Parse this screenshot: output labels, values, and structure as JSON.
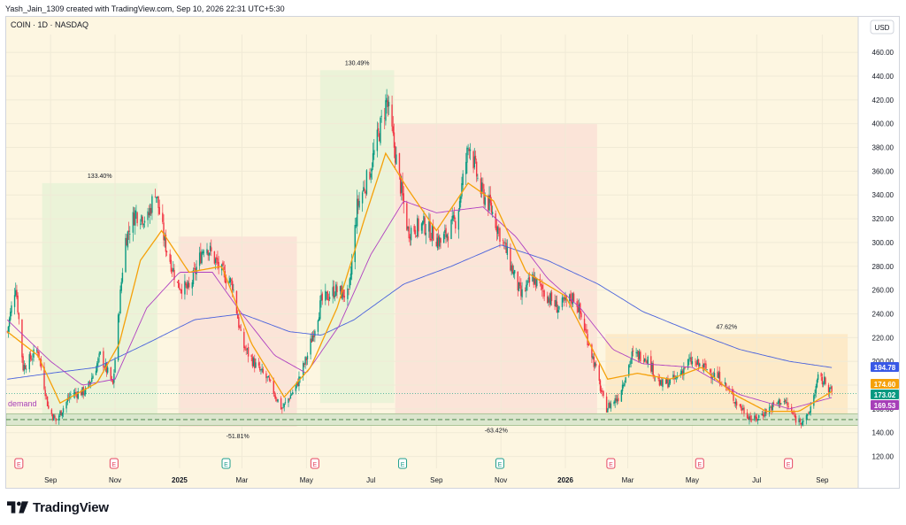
{
  "header": {
    "caption": "Yash_Jain_1309 created with TradingView.com, Sep 10, 2026 22:31 UTC+5:30"
  },
  "footer": {
    "brand": "TradingView",
    "logo_icon": "tradingview-logo-icon"
  },
  "colors": {
    "background": "#fdf6e1",
    "up": "#089981",
    "down": "#f23645",
    "grid": "#f0ead6",
    "ema_fast": "#f5a10a",
    "ema_mid": "#b040c0",
    "ema_slow": "#4a63dc",
    "rise_zone": "#e8f2d6",
    "fall_zone": "#fae0d6",
    "range_zone": "#fde7c3",
    "demand_zone": "#d8e6cc",
    "price_label_blue": "#3959e6",
    "price_label_orange": "#f5a10a",
    "price_label_green": "#089981",
    "price_label_purple": "#a63fb8",
    "earnings_marker": "#e5455f",
    "earnings_marker_teal": "#1f9e8c",
    "demand_text": "#a63fb8"
  },
  "chart_data": {
    "type": "candlestick",
    "symbol_line": "COIN · 1D · NASDAQ",
    "currency": "USD",
    "ylim": [
      110,
      475
    ],
    "y_ticks": [
      120,
      140,
      160,
      180,
      200,
      220,
      240,
      260,
      280,
      300,
      320,
      340,
      360,
      380,
      400,
      420,
      440,
      460
    ],
    "y_tick_labels": [
      "120.00",
      "140.00",
      "160.00",
      "180.00",
      "200.00",
      "220.00",
      "240.00",
      "260.00",
      "280.00",
      "300.00",
      "320.00",
      "340.00",
      "360.00",
      "380.00",
      "400.00",
      "420.00",
      "440.00",
      "460.00"
    ],
    "x_domain": [
      "2024-07-21",
      "2026-10-05"
    ],
    "x_ticks": [
      {
        "date": "2024-09-01",
        "label": "Sep"
      },
      {
        "date": "2024-11-01",
        "label": "Nov"
      },
      {
        "date": "2025-01-01",
        "label": "2025"
      },
      {
        "date": "2025-03-01",
        "label": "Mar"
      },
      {
        "date": "2025-05-01",
        "label": "May"
      },
      {
        "date": "2025-07-01",
        "label": "Jul"
      },
      {
        "date": "2025-09-01",
        "label": "Sep"
      },
      {
        "date": "2025-11-01",
        "label": "Nov"
      },
      {
        "date": "2026-01-01",
        "label": "2026"
      },
      {
        "date": "2026-03-01",
        "label": "Mar"
      },
      {
        "date": "2026-05-01",
        "label": "May"
      },
      {
        "date": "2026-07-01",
        "label": "Jul"
      },
      {
        "date": "2026-09-01",
        "label": "Sep"
      }
    ],
    "price_anchors": [
      [
        "2024-07-22",
        225
      ],
      [
        "2024-07-30",
        265
      ],
      [
        "2024-08-06",
        195
      ],
      [
        "2024-08-20",
        210
      ],
      [
        "2024-08-30",
        160
      ],
      [
        "2024-09-06",
        150
      ],
      [
        "2024-09-20",
        172
      ],
      [
        "2024-10-05",
        175
      ],
      [
        "2024-10-18",
        205
      ],
      [
        "2024-10-30",
        180
      ],
      [
        "2024-11-10",
        300
      ],
      [
        "2024-11-20",
        325
      ],
      [
        "2024-12-02",
        320
      ],
      [
        "2024-12-09",
        345
      ],
      [
        "2024-12-18",
        300
      ],
      [
        "2024-12-30",
        265
      ],
      [
        "2025-01-10",
        260
      ],
      [
        "2025-01-25",
        300
      ],
      [
        "2025-02-10",
        275
      ],
      [
        "2025-02-20",
        265
      ],
      [
        "2025-03-01",
        215
      ],
      [
        "2025-03-15",
        195
      ],
      [
        "2025-03-25",
        185
      ],
      [
        "2025-04-08",
        160
      ],
      [
        "2025-04-22",
        180
      ],
      [
        "2025-05-02",
        205
      ],
      [
        "2025-05-15",
        250
      ],
      [
        "2025-05-28",
        260
      ],
      [
        "2025-06-10",
        255
      ],
      [
        "2025-06-18",
        330
      ],
      [
        "2025-06-30",
        360
      ],
      [
        "2025-07-08",
        390
      ],
      [
        "2025-07-16",
        420
      ],
      [
        "2025-07-24",
        375
      ],
      [
        "2025-08-05",
        310
      ],
      [
        "2025-08-20",
        315
      ],
      [
        "2025-09-05",
        300
      ],
      [
        "2025-09-20",
        320
      ],
      [
        "2025-10-02",
        385
      ],
      [
        "2025-10-12",
        345
      ],
      [
        "2025-10-22",
        330
      ],
      [
        "2025-11-05",
        295
      ],
      [
        "2025-11-20",
        255
      ],
      [
        "2025-12-01",
        270
      ],
      [
        "2025-12-10",
        260
      ],
      [
        "2025-12-25",
        245
      ],
      [
        "2026-01-10",
        255
      ],
      [
        "2026-01-25",
        210
      ],
      [
        "2026-02-08",
        160
      ],
      [
        "2026-02-20",
        170
      ],
      [
        "2026-03-05",
        205
      ],
      [
        "2026-03-18",
        205
      ],
      [
        "2026-04-01",
        180
      ],
      [
        "2026-04-15",
        185
      ],
      [
        "2026-04-28",
        200
      ],
      [
        "2026-05-12",
        195
      ],
      [
        "2026-05-28",
        185
      ],
      [
        "2026-06-12",
        165
      ],
      [
        "2026-06-28",
        150
      ],
      [
        "2026-07-12",
        160
      ],
      [
        "2026-07-26",
        168
      ],
      [
        "2026-08-08",
        150
      ],
      [
        "2026-08-18",
        152
      ],
      [
        "2026-08-28",
        185
      ],
      [
        "2026-09-05",
        182
      ],
      [
        "2026-09-10",
        173
      ]
    ],
    "ema_fast_anchors": [
      [
        "2024-07-22",
        225
      ],
      [
        "2024-08-20",
        205
      ],
      [
        "2024-09-10",
        165
      ],
      [
        "2024-10-15",
        182
      ],
      [
        "2024-11-05",
        215
      ],
      [
        "2024-11-25",
        285
      ],
      [
        "2024-12-15",
        310
      ],
      [
        "2025-01-10",
        275
      ],
      [
        "2025-02-10",
        280
      ],
      [
        "2025-03-10",
        215
      ],
      [
        "2025-04-10",
        170
      ],
      [
        "2025-05-05",
        195
      ],
      [
        "2025-05-30",
        245
      ],
      [
        "2025-06-25",
        320
      ],
      [
        "2025-07-15",
        375
      ],
      [
        "2025-08-05",
        345
      ],
      [
        "2025-09-01",
        310
      ],
      [
        "2025-10-01",
        350
      ],
      [
        "2025-10-25",
        335
      ],
      [
        "2025-11-25",
        275
      ],
      [
        "2026-01-01",
        255
      ],
      [
        "2026-02-10",
        185
      ],
      [
        "2026-03-10",
        190
      ],
      [
        "2026-04-10",
        185
      ],
      [
        "2026-05-10",
        195
      ],
      [
        "2026-06-10",
        172
      ],
      [
        "2026-07-10",
        158
      ],
      [
        "2026-08-10",
        158
      ],
      [
        "2026-09-10",
        174.6
      ]
    ],
    "ema_mid_anchors": [
      [
        "2024-07-22",
        235
      ],
      [
        "2024-09-01",
        200
      ],
      [
        "2024-10-01",
        180
      ],
      [
        "2024-11-01",
        185
      ],
      [
        "2024-12-01",
        245
      ],
      [
        "2025-01-01",
        275
      ],
      [
        "2025-02-01",
        275
      ],
      [
        "2025-03-01",
        240
      ],
      [
        "2025-04-01",
        205
      ],
      [
        "2025-05-01",
        190
      ],
      [
        "2025-06-01",
        230
      ],
      [
        "2025-07-01",
        290
      ],
      [
        "2025-08-01",
        335
      ],
      [
        "2025-09-01",
        325
      ],
      [
        "2025-10-15",
        330
      ],
      [
        "2025-11-15",
        305
      ],
      [
        "2025-12-15",
        270
      ],
      [
        "2026-01-15",
        245
      ],
      [
        "2026-02-15",
        210
      ],
      [
        "2026-03-15",
        198
      ],
      [
        "2026-05-01",
        195
      ],
      [
        "2026-06-15",
        172
      ],
      [
        "2026-08-01",
        160
      ],
      [
        "2026-09-10",
        169.53
      ]
    ],
    "ema_slow_anchors": [
      [
        "2024-07-22",
        185
      ],
      [
        "2024-09-01",
        190
      ],
      [
        "2024-10-15",
        195
      ],
      [
        "2024-12-01",
        215
      ],
      [
        "2025-01-15",
        235
      ],
      [
        "2025-03-01",
        240
      ],
      [
        "2025-04-15",
        225
      ],
      [
        "2025-05-15",
        222
      ],
      [
        "2025-06-15",
        235
      ],
      [
        "2025-08-01",
        265
      ],
      [
        "2025-09-15",
        280
      ],
      [
        "2025-11-01",
        298
      ],
      [
        "2025-12-15",
        285
      ],
      [
        "2026-02-01",
        265
      ],
      [
        "2026-03-15",
        242
      ],
      [
        "2026-05-01",
        225
      ],
      [
        "2026-06-15",
        210
      ],
      [
        "2026-08-01",
        200
      ],
      [
        "2026-09-10",
        194.78
      ]
    ],
    "zones": [
      {
        "kind": "rise",
        "from": "2024-08-24",
        "to": "2024-12-11",
        "low": 150,
        "high": 350,
        "label": "133.40%"
      },
      {
        "kind": "fall",
        "from": "2024-12-31",
        "to": "2025-04-22",
        "low": 145,
        "high": 305,
        "label": "-51.81%"
      },
      {
        "kind": "rise",
        "from": "2025-05-14",
        "to": "2025-07-23",
        "low": 165,
        "high": 445,
        "label": "130.49%"
      },
      {
        "kind": "fall",
        "from": "2025-07-24",
        "to": "2026-01-31",
        "low": 150,
        "high": 400,
        "label": "-63.42%"
      },
      {
        "kind": "range",
        "from": "2026-02-08",
        "to": "2026-09-25",
        "low": 150,
        "high": 223,
        "label": "47.62%"
      }
    ],
    "demand_zone": {
      "low": 146,
      "high": 156,
      "label": "demand",
      "line_value": 151
    },
    "current_price_line": 173,
    "price_labels": [
      {
        "value": 194.78,
        "text": "194.78",
        "color_key": "price_label_blue"
      },
      {
        "value": 174.6,
        "text": "174.60",
        "color_key": "price_label_orange"
      },
      {
        "value": 173.02,
        "text": "173.02",
        "color_key": "price_label_green"
      },
      {
        "value": 169.53,
        "text": "169.53",
        "color_key": "price_label_purple"
      }
    ],
    "earnings_markers": [
      {
        "date": "2024-08-02",
        "label": "E"
      },
      {
        "date": "2024-10-31",
        "label": "E"
      },
      {
        "date": "2025-02-14",
        "label": "E",
        "teal": true
      },
      {
        "date": "2025-05-09",
        "label": "E"
      },
      {
        "date": "2025-07-31",
        "label": "E",
        "teal": true
      },
      {
        "date": "2025-10-31",
        "label": "E",
        "teal": true
      },
      {
        "date": "2026-02-13",
        "label": "E"
      },
      {
        "date": "2026-05-08",
        "label": "E"
      },
      {
        "date": "2026-07-31",
        "label": "E"
      }
    ]
  }
}
